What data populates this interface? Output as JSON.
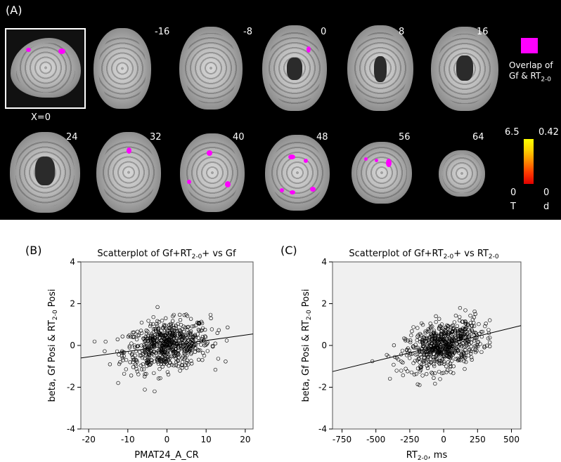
{
  "panel_a": {
    "label": "(A)",
    "sagittal_label": "X=0",
    "slices_row1": [
      "-16",
      "-8",
      "0",
      "8",
      "16"
    ],
    "slices_row2": [
      "24",
      "32",
      "40",
      "48",
      "56",
      "64"
    ],
    "overlap_legend_line1": "Overlap of",
    "overlap_legend_line2_prefix": "Gf & RT",
    "overlap_legend_line2_sub": "2-0",
    "overlap_color": "#ff00ff",
    "colorbar": {
      "t_max": "6.5",
      "d_max": "0.42",
      "t_min": "0",
      "d_min": "0",
      "t_label": "T",
      "d_label": "d"
    }
  },
  "chart_data": [
    {
      "type": "scatter",
      "panel_label": "(B)",
      "title_parts": [
        "Scatterplot of Gf+RT",
        "2-0",
        "+ vs Gf"
      ],
      "xlabel": "PMAT24_A_CR",
      "ylabel_parts": [
        "beta, Gf Posi & RT",
        "2-0",
        " Posi"
      ],
      "xlim": [
        -22,
        22
      ],
      "ylim": [
        -4,
        4
      ],
      "xticks": [
        -20,
        -10,
        0,
        10,
        20
      ],
      "yticks": [
        -4,
        -2,
        0,
        2,
        4
      ],
      "fit_line": {
        "x": [
          -22,
          22
        ],
        "y": [
          -0.6,
          0.55
        ]
      },
      "background": "#f0f0f0"
    },
    {
      "type": "scatter",
      "panel_label": "(C)",
      "title_parts": [
        "Scatterplot of Gf+RT",
        "2-0",
        "+ vs RT",
        "2-0"
      ],
      "xlabel_parts": [
        "RT",
        "2-0",
        ", ms"
      ],
      "ylabel_parts": [
        "beta, Gf Posi & RT",
        "2-0",
        " Posi"
      ],
      "xlim": [
        -820,
        570
      ],
      "ylim": [
        -4,
        4
      ],
      "xticks": [
        -750,
        -500,
        -250,
        0,
        250,
        500
      ],
      "yticks": [
        -4,
        -2,
        0,
        2,
        4
      ],
      "fit_line": {
        "x": [
          -820,
          570
        ],
        "y": [
          -1.25,
          0.95
        ]
      },
      "background": "#f0f0f0"
    }
  ]
}
